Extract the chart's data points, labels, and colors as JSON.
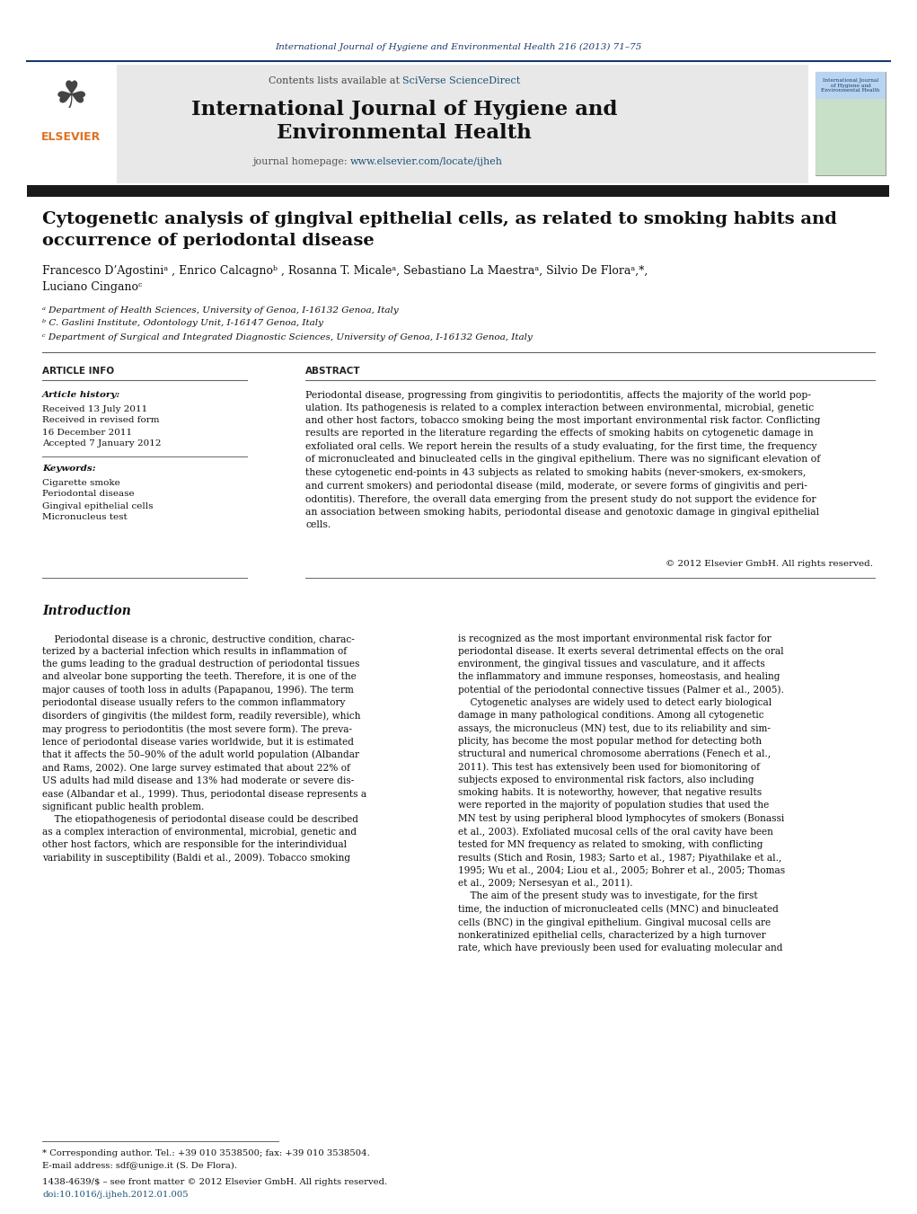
{
  "page_bg": "#ffffff",
  "top_citation": "International Journal of Hygiene and Environmental Health 216 (2013) 71–75",
  "top_citation_color": "#1a3a6b",
  "header_bg": "#e8e8e8",
  "contents_text": "Contents lists available at ",
  "sciverse_text": "SciVerse ScienceDirect",
  "sciverse_color": "#1a5276",
  "journal_title_line1": "International Journal of Hygiene and",
  "journal_title_line2": "Environmental Health",
  "journal_homepage_text": "journal homepage: ",
  "journal_url": "www.elsevier.com/locate/ijheh",
  "journal_url_color": "#1a5276",
  "dark_bar_color": "#1a1a1a",
  "article_title_line1": "Cytogenetic analysis of gingival epithelial cells, as related to smoking habits and",
  "article_title_line2": "occurrence of periodontal disease",
  "authors_line1": "Francesco D’Agostiniᵃ , Enrico Calcagnoᵇ , Rosanna T. Micaleᵃ, Sebastiano La Maestraᵃ, Silvio De Floraᵃ,*,",
  "authors_line2": "Luciano Cinganoᶜ",
  "affil_a": "ᵃ Department of Health Sciences, University of Genoa, I-16132 Genoa, Italy",
  "affil_b": "ᵇ C. Gaslini Institute, Odontology Unit, I-16147 Genoa, Italy",
  "affil_c": "ᶜ Department of Surgical and Integrated Diagnostic Sciences, University of Genoa, I-16132 Genoa, Italy",
  "section_article_info": "ARTICLE INFO",
  "section_abstract": "ABSTRACT",
  "article_history_label": "Article history:",
  "received1": "Received 13 July 2011",
  "received2": "Received in revised form",
  "received3": "16 December 2011",
  "accepted": "Accepted 7 January 2012",
  "keywords_label": "Keywords:",
  "keyword1": "Cigarette smoke",
  "keyword2": "Periodontal disease",
  "keyword3": "Gingival epithelial cells",
  "keyword4": "Micronucleus test",
  "abstract_text": "Periodontal disease, progressing from gingivitis to periodontitis, affects the majority of the world pop-\nulation. Its pathogenesis is related to a complex interaction between environmental, microbial, genetic\nand other host factors, tobacco smoking being the most important environmental risk factor. Conflicting\nresults are reported in the literature regarding the effects of smoking habits on cytogenetic damage in\nexfoliated oral cells. We report herein the results of a study evaluating, for the first time, the frequency\nof micronucleated and binucleated cells in the gingival epithelium. There was no significant elevation of\nthese cytogenetic end-points in 43 subjects as related to smoking habits (never-smokers, ex-smokers,\nand current smokers) and periodontal disease (mild, moderate, or severe forms of gingivitis and peri-\nodontitis). Therefore, the overall data emerging from the present study do not support the evidence for\nan association between smoking habits, periodontal disease and genotoxic damage in gingival epithelial\ncells.",
  "copyright": "© 2012 Elsevier GmbH. All rights reserved.",
  "intro_heading": "Introduction",
  "intro_col1": "    Periodontal disease is a chronic, destructive condition, charac-\nterized by a bacterial infection which results in inflammation of\nthe gums leading to the gradual destruction of periodontal tissues\nand alveolar bone supporting the teeth. Therefore, it is one of the\nmajor causes of tooth loss in adults (Papapanou, 1996). The term\nperiodontal disease usually refers to the common inflammatory\ndisorders of gingivitis (the mildest form, readily reversible), which\nmay progress to periodontitis (the most severe form). The preva-\nlence of periodontal disease varies worldwide, but it is estimated\nthat it affects the 50–90% of the adult world population (Albandar\nand Rams, 2002). One large survey estimated that about 22% of\nUS adults had mild disease and 13% had moderate or severe dis-\nease (Albandar et al., 1999). Thus, periodontal disease represents a\nsignificant public health problem.\n    The etiopathogenesis of periodontal disease could be described\nas a complex interaction of environmental, microbial, genetic and\nother host factors, which are responsible for the interindividual\nvariability in susceptibility (Baldi et al., 2009). Tobacco smoking",
  "intro_col2": "is recognized as the most important environmental risk factor for\nperiodontal disease. It exerts several detrimental effects on the oral\nenvironment, the gingival tissues and vasculature, and it affects\nthe inflammatory and immune responses, homeostasis, and healing\npotential of the periodontal connective tissues (Palmer et al., 2005).\n    Cytogenetic analyses are widely used to detect early biological\ndamage in many pathological conditions. Among all cytogenetic\nassays, the micronucleus (MN) test, due to its reliability and sim-\nplicity, has become the most popular method for detecting both\nstructural and numerical chromosome aberrations (Fenech et al.,\n2011). This test has extensively been used for biomonitoring of\nsubjects exposed to environmental risk factors, also including\nsmoking habits. It is noteworthy, however, that negative results\nwere reported in the majority of population studies that used the\nMN test by using peripheral blood lymphocytes of smokers (Bonassi\net al., 2003). Exfoliated mucosal cells of the oral cavity have been\ntested for MN frequency as related to smoking, with conflicting\nresults (Stich and Rosin, 1983; Sarto et al., 1987; Piyathilake et al.,\n1995; Wu et al., 2004; Liou et al., 2005; Bohrer et al., 2005; Thomas\net al., 2009; Nersesyan et al., 2011).\n    The aim of the present study was to investigate, for the first\ntime, the induction of micronucleated cells (MNC) and binucleated\ncells (BNC) in the gingival epithelium. Gingival mucosal cells are\nnonkeratinized epithelial cells, characterized by a high turnover\nrate, which have previously been used for evaluating molecular and",
  "footnote_star": "* Corresponding author. Tel.: +39 010 3538500; fax: +39 010 3538504.",
  "footnote_email": "E-mail address: sdf@unige.it (S. De Flora).",
  "issn_line": "1438-4639/$ – see front matter © 2012 Elsevier GmbH. All rights reserved.",
  "doi_line": "doi:10.1016/j.ijheh.2012.01.005",
  "link_color": "#1a5276",
  "elsevier_color": "#e07020"
}
